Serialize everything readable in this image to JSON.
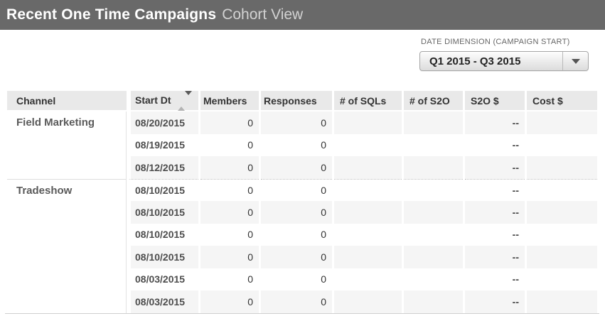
{
  "topbar": {
    "title": "Recent One Time Campaigns",
    "subtitle": "Cohort View"
  },
  "filter": {
    "label": "DATE DIMENSION (CAMPAIGN START)",
    "value": "Q1 2015 - Q3 2015"
  },
  "table": {
    "headers": {
      "channel": "Channel",
      "start_dt": "Start Dt",
      "members": "Members",
      "responses": "Responses",
      "num_sqls": "# of SQLs",
      "num_s2o": "# of S2O",
      "s2o_dollars": "S2O $",
      "cost_dollars": "Cost $"
    },
    "sort": {
      "column": "Start Dt",
      "direction": "desc"
    },
    "groups": [
      {
        "channel": "Field Marketing",
        "rows": [
          {
            "start_dt": "08/20/2015",
            "members": "0",
            "responses": "0",
            "num_sqls": "",
            "num_s2o": "",
            "s2o_dollars": "--",
            "cost_dollars": ""
          },
          {
            "start_dt": "08/19/2015",
            "members": "0",
            "responses": "0",
            "num_sqls": "",
            "num_s2o": "",
            "s2o_dollars": "--",
            "cost_dollars": ""
          },
          {
            "start_dt": "08/12/2015",
            "members": "0",
            "responses": "0",
            "num_sqls": "",
            "num_s2o": "",
            "s2o_dollars": "--",
            "cost_dollars": ""
          }
        ]
      },
      {
        "channel": "Tradeshow",
        "rows": [
          {
            "start_dt": "08/10/2015",
            "members": "0",
            "responses": "0",
            "num_sqls": "",
            "num_s2o": "",
            "s2o_dollars": "--",
            "cost_dollars": ""
          },
          {
            "start_dt": "08/10/2015",
            "members": "0",
            "responses": "0",
            "num_sqls": "",
            "num_s2o": "",
            "s2o_dollars": "--",
            "cost_dollars": ""
          },
          {
            "start_dt": "08/10/2015",
            "members": "0",
            "responses": "0",
            "num_sqls": "",
            "num_s2o": "",
            "s2o_dollars": "--",
            "cost_dollars": ""
          },
          {
            "start_dt": "08/10/2015",
            "members": "0",
            "responses": "0",
            "num_sqls": "",
            "num_s2o": "",
            "s2o_dollars": "--",
            "cost_dollars": ""
          },
          {
            "start_dt": "08/03/2015",
            "members": "0",
            "responses": "0",
            "num_sqls": "",
            "num_s2o": "",
            "s2o_dollars": "--",
            "cost_dollars": ""
          },
          {
            "start_dt": "08/03/2015",
            "members": "0",
            "responses": "0",
            "num_sqls": "",
            "num_s2o": "",
            "s2o_dollars": "--",
            "cost_dollars": ""
          }
        ]
      }
    ]
  },
  "colors": {
    "topbar_bg": "#696969",
    "title_text": "#ffffff",
    "subtitle_text": "#d2d2d2",
    "header_bg": "#e9e9e9",
    "row_alt_bg": "#f5f5f5",
    "row_bg": "#ffffff",
    "text_dark": "#333333",
    "text_gray": "#5a5a5a"
  }
}
